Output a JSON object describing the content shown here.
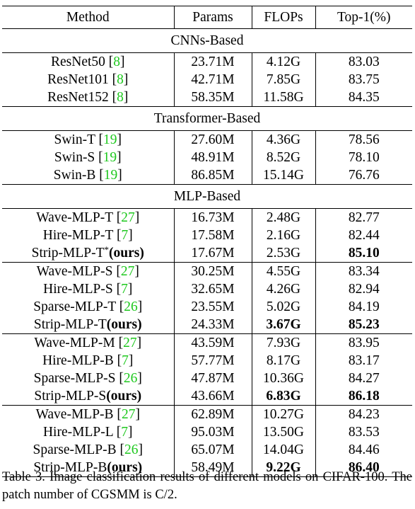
{
  "header": [
    "Method",
    "Params",
    "FLOPs",
    "Top-1(%)"
  ],
  "sections": [
    {
      "title": "CNNs-Based",
      "groups": [
        [
          {
            "method": [
              {
                "text": "ResNet50 ["
              },
              {
                "text": "8",
                "style": "cite"
              },
              {
                "text": "]"
              }
            ],
            "params": "23.71M",
            "flops": "4.12G",
            "top1": "83.03"
          },
          {
            "method": [
              {
                "text": "ResNet101 ["
              },
              {
                "text": "8",
                "style": "cite"
              },
              {
                "text": "]"
              }
            ],
            "params": "42.71M",
            "flops": "7.85G",
            "top1": "83.75"
          },
          {
            "method": [
              {
                "text": "ResNet152 ["
              },
              {
                "text": "8",
                "style": "cite"
              },
              {
                "text": "]"
              }
            ],
            "params": "58.35M",
            "flops": "11.58G",
            "top1": "84.35"
          }
        ]
      ]
    },
    {
      "title": "Transformer-Based",
      "groups": [
        [
          {
            "method": [
              {
                "text": "Swin-T ["
              },
              {
                "text": "19",
                "style": "cite"
              },
              {
                "text": "]"
              }
            ],
            "params": "27.60M",
            "flops": "4.36G",
            "top1": "78.56"
          },
          {
            "method": [
              {
                "text": "Swin-S ["
              },
              {
                "text": "19",
                "style": "cite"
              },
              {
                "text": "]"
              }
            ],
            "params": "48.91M",
            "flops": "8.52G",
            "top1": "78.10"
          },
          {
            "method": [
              {
                "text": "Swin-B ["
              },
              {
                "text": "19",
                "style": "cite"
              },
              {
                "text": "]"
              }
            ],
            "params": "86.85M",
            "flops": "15.14G",
            "top1": "76.76"
          }
        ]
      ]
    },
    {
      "title": "MLP-Based",
      "groups": [
        [
          {
            "method": [
              {
                "text": "Wave-MLP-T ["
              },
              {
                "text": "27",
                "style": "cite"
              },
              {
                "text": "]"
              }
            ],
            "params": "16.73M",
            "flops": "2.48G",
            "top1": "82.77"
          },
          {
            "method": [
              {
                "text": "Hire-MLP-T ["
              },
              {
                "text": "7",
                "style": "cite"
              },
              {
                "text": "]"
              }
            ],
            "params": "17.58M",
            "flops": "2.16G",
            "top1": "82.44"
          },
          {
            "method": [
              {
                "text": "Strip-MLP-T"
              },
              {
                "text": "*",
                "style": "sup"
              },
              {
                "text": "(ours)",
                "style": "bold"
              }
            ],
            "params": "17.67M",
            "flops": "2.53G",
            "top1": "85.10",
            "bold": [
              "top1"
            ]
          }
        ],
        [
          {
            "method": [
              {
                "text": "Wave-MLP-S ["
              },
              {
                "text": "27",
                "style": "cite"
              },
              {
                "text": "]"
              }
            ],
            "params": "30.25M",
            "flops": "4.55G",
            "top1": "83.34"
          },
          {
            "method": [
              {
                "text": "Hire-MLP-S ["
              },
              {
                "text": "7",
                "style": "cite"
              },
              {
                "text": "]"
              }
            ],
            "params": "32.65M",
            "flops": "4.26G",
            "top1": "82.94"
          },
          {
            "method": [
              {
                "text": "Sparse-MLP-T ["
              },
              {
                "text": "26",
                "style": "cite"
              },
              {
                "text": "]"
              }
            ],
            "params": "23.55M",
            "flops": "5.02G",
            "top1": "84.19"
          },
          {
            "method": [
              {
                "text": "Strip-MLP-T"
              },
              {
                "text": "(ours)",
                "style": "bold"
              }
            ],
            "params": "24.33M",
            "flops": "3.67G",
            "top1": "85.23",
            "bold": [
              "flops",
              "top1"
            ]
          }
        ],
        [
          {
            "method": [
              {
                "text": "Wave-MLP-M ["
              },
              {
                "text": "27",
                "style": "cite"
              },
              {
                "text": "]"
              }
            ],
            "params": "43.59M",
            "flops": "7.93G",
            "top1": "83.95"
          },
          {
            "method": [
              {
                "text": "Hire-MLP-B ["
              },
              {
                "text": "7",
                "style": "cite"
              },
              {
                "text": "]"
              }
            ],
            "params": "57.77M",
            "flops": "8.17G",
            "top1": "83.17"
          },
          {
            "method": [
              {
                "text": "Sparse-MLP-S ["
              },
              {
                "text": "26",
                "style": "cite"
              },
              {
                "text": "]"
              }
            ],
            "params": "47.87M",
            "flops": "10.36G",
            "top1": "84.27"
          },
          {
            "method": [
              {
                "text": "Strip-MLP-S"
              },
              {
                "text": "(ours)",
                "style": "bold"
              }
            ],
            "params": "43.66M",
            "flops": "6.83G",
            "top1": "86.18",
            "bold": [
              "flops",
              "top1"
            ]
          }
        ],
        [
          {
            "method": [
              {
                "text": "Wave-MLP-B ["
              },
              {
                "text": "27",
                "style": "cite"
              },
              {
                "text": "]"
              }
            ],
            "params": "62.89M",
            "flops": "10.27G",
            "top1": "84.23"
          },
          {
            "method": [
              {
                "text": "Hire-MLP-L ["
              },
              {
                "text": "7",
                "style": "cite"
              },
              {
                "text": "]"
              }
            ],
            "params": "95.03M",
            "flops": "13.50G",
            "top1": "83.53"
          },
          {
            "method": [
              {
                "text": "Sparse-MLP-B ["
              },
              {
                "text": "26",
                "style": "cite"
              },
              {
                "text": "]"
              }
            ],
            "params": "65.07M",
            "flops": "14.04G",
            "top1": "84.46"
          },
          {
            "method": [
              {
                "text": "Strip-MLP-B"
              },
              {
                "text": "(ours)",
                "style": "bold"
              }
            ],
            "params": "58.49M",
            "flops": "9.22G",
            "top1": "86.40",
            "bold": [
              "flops",
              "top1"
            ]
          }
        ]
      ]
    }
  ],
  "caption": "Table 3. Image classification results of different models on CIFAR-100. The patch number of CGSMM is C/2."
}
